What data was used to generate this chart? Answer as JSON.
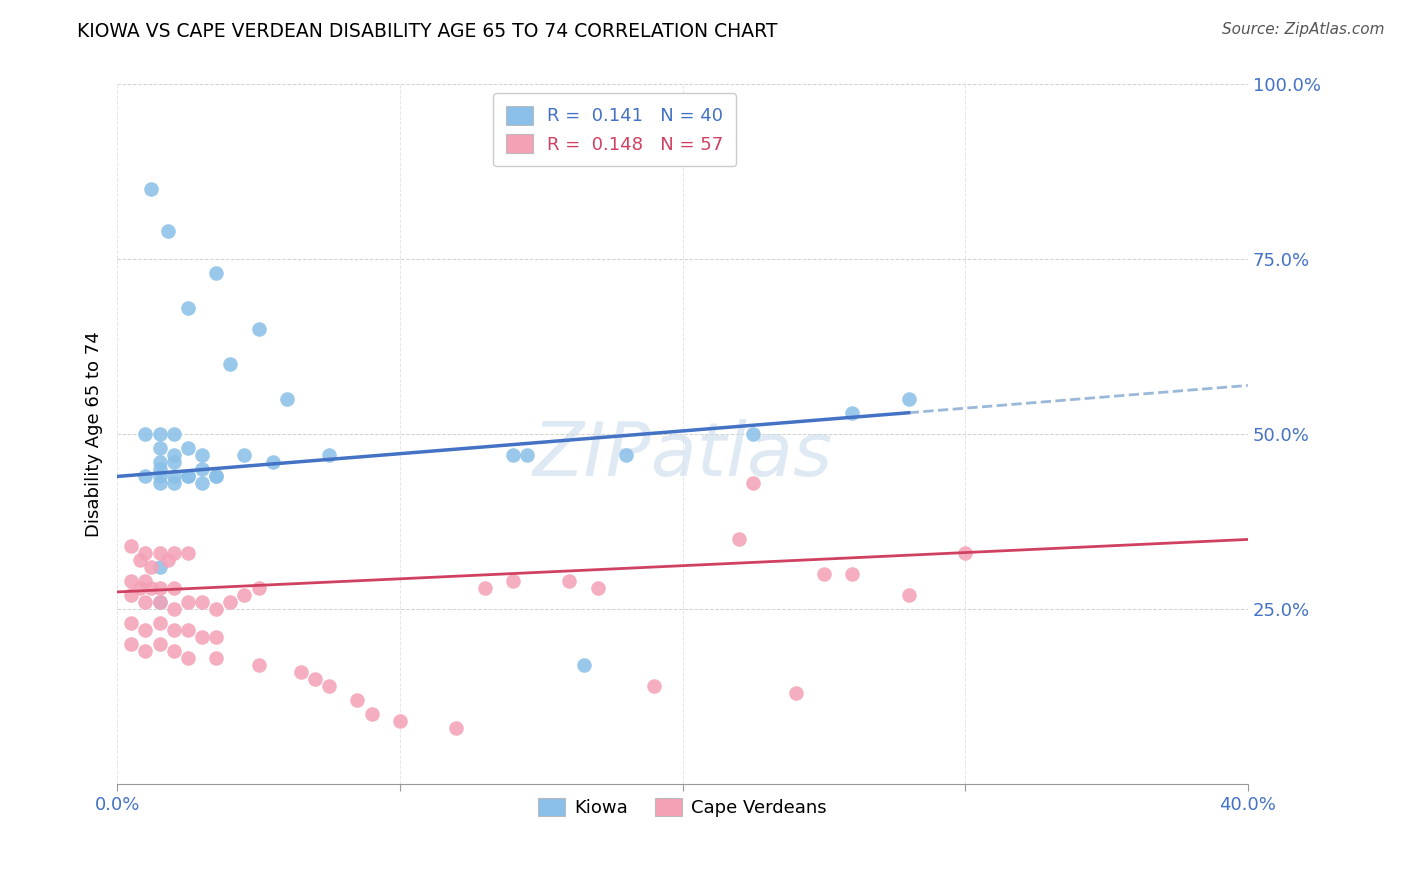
{
  "title": "KIOWA VS CAPE VERDEAN DISABILITY AGE 65 TO 74 CORRELATION CHART",
  "source": "Source: ZipAtlas.com",
  "ylabel": "Disability Age 65 to 74",
  "xlim": [
    0.0,
    40.0
  ],
  "ylim": [
    0.0,
    100.0
  ],
  "legend_r1": "R =  0.141",
  "legend_n1": "N = 40",
  "legend_r2": "R =  0.148",
  "legend_n2": "N = 57",
  "kiowa_color": "#89bfe8",
  "capeverdean_color": "#f4a0b5",
  "trend_kiowa_color": "#4472c4",
  "trend_capeverdean_color": "#d04060",
  "trend_kiowa_dashed_color": "#9ab8d8",
  "watermark": "ZIPatlas",
  "kiowa_x": [
    1.2,
    1.8,
    3.5,
    5.0,
    6.0,
    2.5,
    4.0,
    1.0,
    1.5,
    2.0,
    1.5,
    2.5,
    3.0,
    2.0,
    1.5,
    2.0,
    1.5,
    3.0,
    2.5,
    2.0,
    3.5,
    1.5,
    2.0,
    3.0,
    4.5,
    7.5,
    14.5,
    14.0,
    18.0,
    22.5,
    26.0,
    28.0,
    1.5,
    1.5,
    16.5,
    1.0,
    1.5,
    2.5,
    3.5,
    5.5
  ],
  "kiowa_y": [
    85.0,
    79.0,
    73.0,
    65.0,
    55.0,
    68.0,
    60.0,
    50.0,
    50.0,
    50.0,
    48.0,
    48.0,
    47.0,
    47.0,
    46.0,
    46.0,
    45.0,
    45.0,
    44.0,
    44.0,
    44.0,
    43.0,
    43.0,
    43.0,
    47.0,
    47.0,
    47.0,
    47.0,
    47.0,
    50.0,
    53.0,
    55.0,
    31.0,
    26.0,
    17.0,
    44.0,
    44.0,
    44.0,
    44.0,
    46.0
  ],
  "cv_x": [
    0.5,
    1.0,
    1.5,
    2.0,
    0.8,
    1.2,
    1.8,
    2.5,
    0.5,
    1.0,
    1.5,
    0.8,
    1.2,
    2.0,
    0.5,
    1.0,
    1.5,
    2.0,
    2.5,
    3.0,
    3.5,
    4.0,
    4.5,
    5.0,
    0.5,
    1.0,
    1.5,
    2.0,
    2.5,
    3.0,
    3.5,
    0.5,
    1.0,
    1.5,
    2.0,
    2.5,
    3.5,
    5.0,
    6.5,
    7.0,
    7.5,
    13.0,
    14.0,
    16.0,
    17.0,
    22.0,
    22.5,
    25.0,
    26.0,
    28.0,
    30.0,
    8.5,
    9.0,
    10.0,
    12.0,
    19.0,
    24.0
  ],
  "cv_y": [
    34.0,
    33.0,
    33.0,
    33.0,
    32.0,
    31.0,
    32.0,
    33.0,
    29.0,
    29.0,
    28.0,
    28.0,
    28.0,
    28.0,
    27.0,
    26.0,
    26.0,
    25.0,
    26.0,
    26.0,
    25.0,
    26.0,
    27.0,
    28.0,
    23.0,
    22.0,
    23.0,
    22.0,
    22.0,
    21.0,
    21.0,
    20.0,
    19.0,
    20.0,
    19.0,
    18.0,
    18.0,
    17.0,
    16.0,
    15.0,
    14.0,
    28.0,
    29.0,
    29.0,
    28.0,
    35.0,
    43.0,
    30.0,
    30.0,
    27.0,
    33.0,
    12.0,
    10.0,
    9.0,
    8.0,
    14.0,
    13.0
  ],
  "kiowa_trend_x0": 0.0,
  "kiowa_trend_y0": 44.0,
  "kiowa_trend_x1": 40.0,
  "kiowa_trend_y1": 57.0,
  "kiowa_trend_solid_end": 28.0,
  "cv_trend_x0": 0.0,
  "cv_trend_y0": 27.5,
  "cv_trend_x1": 40.0,
  "cv_trend_y1": 35.0
}
